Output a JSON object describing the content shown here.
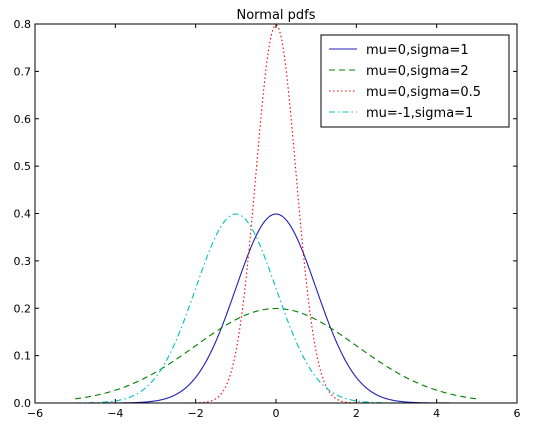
{
  "chart_data": {
    "type": "line",
    "title": "Normal pdfs",
    "xlabel": "",
    "ylabel": "",
    "xlim": [
      -6,
      6
    ],
    "ylim": [
      0,
      0.8
    ],
    "xticks": [
      -6,
      -4,
      -2,
      0,
      2,
      4,
      6
    ],
    "xtick_labels": [
      "−6",
      "−4",
      "−2",
      "0",
      "2",
      "4",
      "6"
    ],
    "yticks": [
      0.0,
      0.1,
      0.2,
      0.3,
      0.4,
      0.5,
      0.6,
      0.7,
      0.8
    ],
    "ytick_labels": [
      "0.0",
      "0.1",
      "0.2",
      "0.3",
      "0.4",
      "0.5",
      "0.6",
      "0.7",
      "0.8"
    ],
    "grid": false,
    "legend_position": "top-right",
    "x_range": [
      -5,
      5
    ],
    "series": [
      {
        "name": "mu=0,sigma=1",
        "mu": 0,
        "sigma": 1,
        "color": "#1f1fb4",
        "dash": "solid"
      },
      {
        "name": "mu=0,sigma=2",
        "mu": 0,
        "sigma": 2,
        "color": "#008000",
        "dash": "dashed"
      },
      {
        "name": "mu=0,sigma=0.5",
        "mu": 0,
        "sigma": 0.5,
        "color": "#ff0000",
        "dash": "dotted"
      },
      {
        "name": "mu=-1,sigma=1",
        "mu": -1,
        "sigma": 1,
        "color": "#00bfbf",
        "dash": "dashdot"
      }
    ]
  }
}
